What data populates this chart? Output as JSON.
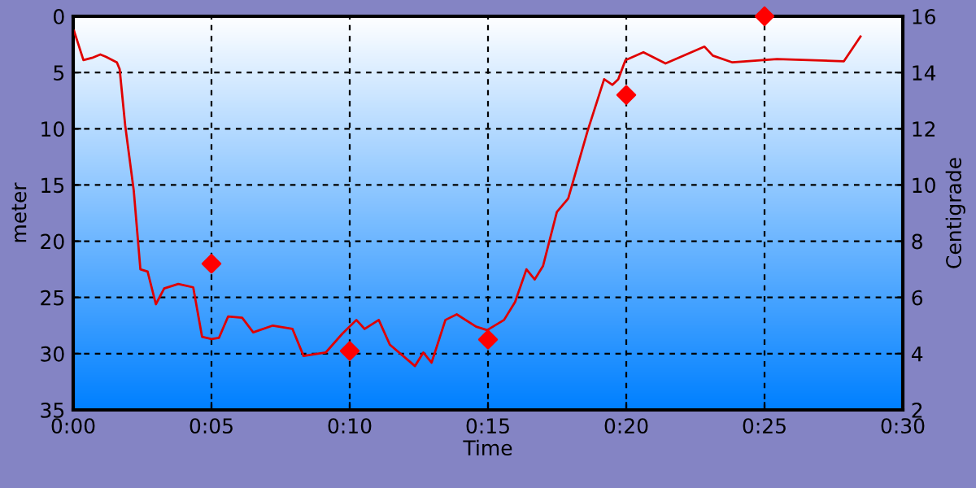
{
  "chart_data": {
    "type": "line",
    "xlabel": "Time",
    "ylabel": "meter",
    "y2label": "Centigrade",
    "xlim": [
      0,
      30
    ],
    "xticks": [
      {
        "value": 0,
        "label": "0:00"
      },
      {
        "value": 5,
        "label": "0:05"
      },
      {
        "value": 10,
        "label": "0:10"
      },
      {
        "value": 15,
        "label": "0:15"
      },
      {
        "value": 20,
        "label": "0:20"
      },
      {
        "value": 25,
        "label": "0:25"
      },
      {
        "value": 30,
        "label": "0:30"
      }
    ],
    "ylim": [
      35,
      0
    ],
    "yticks": [
      0,
      5,
      10,
      15,
      20,
      25,
      30,
      35
    ],
    "y2lim": [
      2,
      16
    ],
    "y2ticks": [
      2,
      4,
      6,
      8,
      10,
      12,
      14,
      16
    ],
    "grid": true,
    "series": [
      {
        "color": "#e00000",
        "marker": "none",
        "line_style": "solid",
        "x": [
          0.03,
          0.37,
          0.68,
          0.98,
          1.18,
          1.58,
          1.68,
          1.88,
          2.19,
          2.43,
          2.69,
          2.99,
          3.29,
          3.8,
          4.34,
          4.66,
          5.0,
          5.27,
          5.6,
          6.11,
          6.51,
          7.22,
          7.93,
          8.33,
          9.13,
          9.74,
          10.24,
          10.54,
          11.05,
          11.45,
          12.36,
          12.66,
          12.96,
          13.46,
          13.87,
          14.57,
          14.97,
          15.58,
          15.98,
          16.39,
          16.69,
          16.99,
          17.49,
          17.9,
          18.6,
          19.2,
          19.5,
          19.71,
          19.97,
          20.62,
          21.42,
          22.83,
          23.13,
          23.84,
          25.45,
          27.87,
          28.47
        ],
        "values": [
          1.3,
          3.9,
          3.7,
          3.4,
          3.6,
          4.1,
          4.7,
          9.7,
          15.5,
          22.5,
          22.7,
          25.6,
          24.2,
          23.8,
          24.1,
          28.5,
          28.7,
          28.6,
          26.7,
          26.8,
          28.1,
          27.5,
          27.8,
          30.2,
          29.9,
          28.2,
          27.0,
          27.8,
          27.0,
          29.2,
          31.1,
          29.9,
          30.8,
          27.0,
          26.5,
          27.6,
          27.9,
          27.0,
          25.4,
          22.5,
          23.4,
          22.2,
          17.4,
          16.2,
          10.2,
          5.6,
          6.1,
          5.6,
          3.9,
          3.2,
          4.2,
          2.7,
          3.5,
          4.1,
          3.8,
          4.0,
          1.8
        ]
      },
      {
        "type": "scatter",
        "axis": "y2",
        "color": "#ff0000",
        "marker": "diamond",
        "x": [
          5,
          10,
          15,
          20,
          25
        ],
        "values": [
          7.2,
          4.1,
          4.5,
          13.2,
          16
        ]
      }
    ]
  }
}
